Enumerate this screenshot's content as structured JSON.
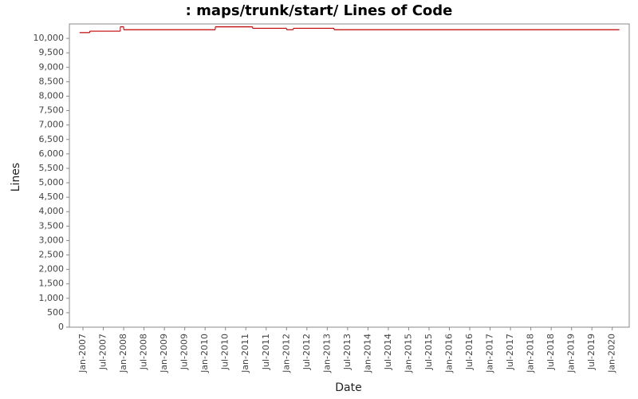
{
  "chart_data": {
    "type": "step-line",
    "title": ": maps/trunk/start/ Lines of Code",
    "x_label": "Date",
    "y_label": "Lines",
    "x": [
      "2006-12",
      "2007-03",
      "2007-12",
      "2008-01",
      "2010-04",
      "2011-03",
      "2012-01",
      "2012-03",
      "2013-03",
      "2020-03"
    ],
    "series": [
      {
        "name": "Lines",
        "color": "#c00000",
        "values": [
          10200,
          10250,
          10400,
          10300,
          10400,
          10350,
          10300,
          10350,
          10300,
          10300
        ]
      }
    ],
    "xlim": [
      "2006-09",
      "2020-06"
    ],
    "xticks": [
      {
        "value": "2007-01",
        "label": "Jan-2007"
      },
      {
        "value": "2007-07",
        "label": "Jul-2007"
      },
      {
        "value": "2008-01",
        "label": "Jan-2008"
      },
      {
        "value": "2008-07",
        "label": "Jul-2008"
      },
      {
        "value": "2009-01",
        "label": "Jan-2009"
      },
      {
        "value": "2009-07",
        "label": "Jul-2009"
      },
      {
        "value": "2010-01",
        "label": "Jan-2010"
      },
      {
        "value": "2010-07",
        "label": "Jul-2010"
      },
      {
        "value": "2011-01",
        "label": "Jan-2011"
      },
      {
        "value": "2011-07",
        "label": "Jul-2011"
      },
      {
        "value": "2012-01",
        "label": "Jan-2012"
      },
      {
        "value": "2012-07",
        "label": "Jul-2012"
      },
      {
        "value": "2013-01",
        "label": "Jan-2013"
      },
      {
        "value": "2013-07",
        "label": "Jul-2013"
      },
      {
        "value": "2014-01",
        "label": "Jan-2014"
      },
      {
        "value": "2014-07",
        "label": "Jul-2014"
      },
      {
        "value": "2015-01",
        "label": "Jan-2015"
      },
      {
        "value": "2015-07",
        "label": "Jul-2015"
      },
      {
        "value": "2016-01",
        "label": "Jan-2016"
      },
      {
        "value": "2016-07",
        "label": "Jul-2016"
      },
      {
        "value": "2017-01",
        "label": "Jan-2017"
      },
      {
        "value": "2017-07",
        "label": "Jul-2017"
      },
      {
        "value": "2018-01",
        "label": "Jan-2018"
      },
      {
        "value": "2018-07",
        "label": "Jul-2018"
      },
      {
        "value": "2019-01",
        "label": "Jan-2019"
      },
      {
        "value": "2019-07",
        "label": "Jul-2019"
      },
      {
        "value": "2020-01",
        "label": "Jan-2020"
      }
    ],
    "ylim": [
      0,
      10500
    ],
    "yticks": [
      0,
      500,
      {
        "value": 1000,
        "label": "1,000"
      },
      {
        "value": 1500,
        "label": "1,500"
      },
      {
        "value": 2000,
        "label": "2,000"
      },
      {
        "value": 2500,
        "label": "2,500"
      },
      {
        "value": 3000,
        "label": "3,000"
      },
      {
        "value": 3500,
        "label": "3,500"
      },
      {
        "value": 4000,
        "label": "4,000"
      },
      {
        "value": 4500,
        "label": "4,500"
      },
      {
        "value": 5000,
        "label": "5,000"
      },
      {
        "value": 5500,
        "label": "5,500"
      },
      {
        "value": 6000,
        "label": "6,000"
      },
      {
        "value": 6500,
        "label": "6,500"
      },
      {
        "value": 7000,
        "label": "7,000"
      },
      {
        "value": 7500,
        "label": "7,500"
      },
      {
        "value": 8000,
        "label": "8,000"
      },
      {
        "value": 8500,
        "label": "8,500"
      },
      {
        "value": 9000,
        "label": "9,000"
      },
      {
        "value": 9500,
        "label": "9,500"
      },
      {
        "value": 10000,
        "label": "10,000"
      }
    ],
    "grid": false
  }
}
